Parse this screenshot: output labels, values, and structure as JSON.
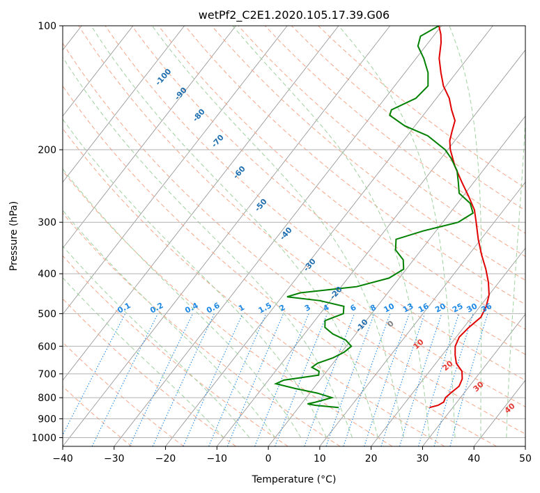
{
  "chart_data": {
    "type": "skewt",
    "title": "wetPf2_C2E1.2020.105.17.39.G06",
    "xlabel": "Temperature (°C)",
    "ylabel": "Pressure (hPa)",
    "xlim": [
      -40,
      50
    ],
    "ylim": [
      1050,
      100
    ],
    "y_scale": "log",
    "x_ticks": [
      -40,
      -30,
      -20,
      -10,
      0,
      10,
      20,
      30,
      40,
      50
    ],
    "y_ticks": [
      100,
      200,
      300,
      400,
      500,
      600,
      700,
      800,
      900,
      1000
    ],
    "grid": true,
    "colors": {
      "temperature": "#e00000",
      "dewpoint": "#008000",
      "isotherm": "#999999",
      "dry_adiabat": "#f4a688",
      "moist_adiabat": "#9fd19f",
      "mixing_ratio": "#1e88e5",
      "dry_adiabat_label": "#e53935",
      "moist_adiabat_label": "#1f6fb0",
      "lcl_label": "#808080"
    },
    "series": [
      {
        "name": "Temperature",
        "points": [
          {
            "p": 845,
            "t": 25.5
          },
          {
            "p": 835,
            "t": 26.8
          },
          {
            "p": 820,
            "t": 27.4
          },
          {
            "p": 800,
            "t": 27.1
          },
          {
            "p": 780,
            "t": 27.4
          },
          {
            "p": 750,
            "t": 28.0
          },
          {
            "p": 720,
            "t": 27.5
          },
          {
            "p": 690,
            "t": 26.3
          },
          {
            "p": 660,
            "t": 24.0
          },
          {
            "p": 630,
            "t": 22.5
          },
          {
            "p": 600,
            "t": 21.2
          },
          {
            "p": 570,
            "t": 20.6
          },
          {
            "p": 540,
            "t": 21.0
          },
          {
            "p": 510,
            "t": 21.8
          },
          {
            "p": 480,
            "t": 21.2
          },
          {
            "p": 450,
            "t": 20.0
          },
          {
            "p": 420,
            "t": 18.0
          },
          {
            "p": 390,
            "t": 15.5
          },
          {
            "p": 360,
            "t": 12.5
          },
          {
            "p": 330,
            "t": 9.5
          },
          {
            "p": 300,
            "t": 6.5
          },
          {
            "p": 280,
            "t": 4.3
          },
          {
            "p": 260,
            "t": 1.2
          },
          {
            "p": 240,
            "t": -2.3
          },
          {
            "p": 220,
            "t": -6.0
          },
          {
            "p": 200,
            "t": -9.5
          },
          {
            "p": 190,
            "t": -11.0
          },
          {
            "p": 180,
            "t": -12.0
          },
          {
            "p": 170,
            "t": -13.0
          },
          {
            "p": 160,
            "t": -15.3
          },
          {
            "p": 150,
            "t": -17.5
          },
          {
            "p": 140,
            "t": -20.5
          },
          {
            "p": 130,
            "t": -23.0
          },
          {
            "p": 120,
            "t": -25.5
          },
          {
            "p": 110,
            "t": -27.5
          },
          {
            "p": 105,
            "t": -28.8
          },
          {
            "p": 100,
            "t": -30.5
          }
        ]
      },
      {
        "name": "Dewpoint",
        "points": [
          {
            "p": 845,
            "t": 7.8
          },
          {
            "p": 835,
            "t": 3.0
          },
          {
            "p": 828,
            "t": 1.2
          },
          {
            "p": 820,
            "t": 2.5
          },
          {
            "p": 800,
            "t": 5.0
          },
          {
            "p": 780,
            "t": 1.5
          },
          {
            "p": 760,
            "t": -3.5
          },
          {
            "p": 740,
            "t": -8.0
          },
          {
            "p": 725,
            "t": -7.0
          },
          {
            "p": 705,
            "t": -1.0
          },
          {
            "p": 690,
            "t": -1.5
          },
          {
            "p": 675,
            "t": -3.5
          },
          {
            "p": 660,
            "t": -3.0
          },
          {
            "p": 640,
            "t": -0.8
          },
          {
            "p": 620,
            "t": 0.5
          },
          {
            "p": 600,
            "t": 1.0
          },
          {
            "p": 580,
            "t": -1.0
          },
          {
            "p": 560,
            "t": -4.5
          },
          {
            "p": 540,
            "t": -7.0
          },
          {
            "p": 520,
            "t": -8.0
          },
          {
            "p": 500,
            "t": -5.5
          },
          {
            "p": 480,
            "t": -6.5
          },
          {
            "p": 465,
            "t": -12.0
          },
          {
            "p": 455,
            "t": -19.0
          },
          {
            "p": 445,
            "t": -17.0
          },
          {
            "p": 430,
            "t": -7.0
          },
          {
            "p": 410,
            "t": -2.0
          },
          {
            "p": 390,
            "t": -0.5
          },
          {
            "p": 370,
            "t": -2.0
          },
          {
            "p": 350,
            "t": -5.0
          },
          {
            "p": 330,
            "t": -6.5
          },
          {
            "p": 315,
            "t": -2.5
          },
          {
            "p": 300,
            "t": 3.0
          },
          {
            "p": 285,
            "t": 4.5
          },
          {
            "p": 270,
            "t": 2.5
          },
          {
            "p": 255,
            "t": -1.2
          },
          {
            "p": 240,
            "t": -3.0
          },
          {
            "p": 225,
            "t": -5.0
          },
          {
            "p": 210,
            "t": -8.0
          },
          {
            "p": 200,
            "t": -10.5
          },
          {
            "p": 185,
            "t": -16.0
          },
          {
            "p": 175,
            "t": -22.0
          },
          {
            "p": 165,
            "t": -26.5
          },
          {
            "p": 160,
            "t": -27.0
          },
          {
            "p": 150,
            "t": -24.0
          },
          {
            "p": 140,
            "t": -23.5
          },
          {
            "p": 130,
            "t": -25.5
          },
          {
            "p": 120,
            "t": -28.5
          },
          {
            "p": 112,
            "t": -31.5
          },
          {
            "p": 106,
            "t": -32.5
          },
          {
            "p": 100,
            "t": -30.5
          }
        ]
      }
    ],
    "dry_adiabats": [
      -30,
      -20,
      -10,
      0,
      10,
      20,
      30,
      40,
      50,
      60,
      70,
      80,
      90,
      100,
      110,
      120,
      130,
      140,
      150
    ],
    "moist_adiabats": [
      -10,
      -5,
      0,
      5,
      10,
      15,
      20,
      25,
      30,
      35,
      40,
      45
    ],
    "mixing_ratio_lines": [
      0.1,
      0.2,
      0.4,
      0.6,
      1,
      1.5,
      2,
      3,
      4,
      6,
      8,
      10,
      13,
      16,
      20,
      25,
      30,
      36
    ],
    "mixing_ratio_labels": [
      "0.1",
      "0.2",
      "0.4",
      "0.6",
      "1",
      "1.5",
      "2",
      "3",
      "4",
      "6",
      "8",
      "10",
      "13",
      "16",
      "20",
      "25",
      "30",
      "36"
    ],
    "dry_adiabat_labels": [
      "10",
      "20",
      "30",
      "40"
    ],
    "lcl_label": "0",
    "moist_adiabat_labels": [
      "-100",
      "-90",
      "-80",
      "-70",
      "-60",
      "-50",
      "-40",
      "-30",
      "-20",
      "-10"
    ]
  }
}
